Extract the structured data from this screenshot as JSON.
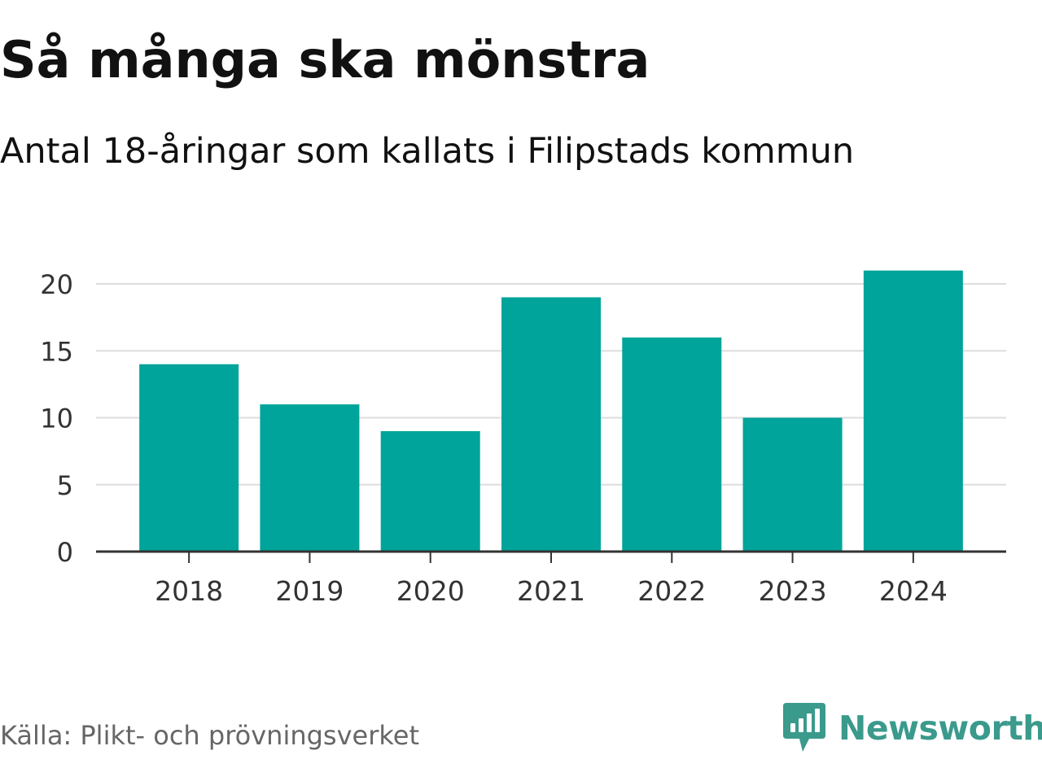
{
  "header": {
    "title": "Så många ska mönstra",
    "subtitle": "Antal 18-åringar som kallats i Filipstads kommun"
  },
  "footer": {
    "source": "Källa: Plikt- och prövningsverket",
    "brand": "Newsworthy",
    "brand_icon": "newsworthy-logo-icon"
  },
  "colors": {
    "bar": "#00a49a",
    "brand": "#3a9a8c",
    "grid": "#dddddd",
    "axis": "#333333",
    "tick_text": "#333333"
  },
  "chart_data": {
    "type": "bar",
    "title": "Så många ska mönstra",
    "subtitle": "Antal 18-åringar som kallats i Filipstads kommun",
    "xlabel": "",
    "ylabel": "",
    "categories": [
      "2018",
      "2019",
      "2020",
      "2021",
      "2022",
      "2023",
      "2024"
    ],
    "values": [
      14,
      11,
      9,
      19,
      16,
      10,
      21
    ],
    "ylim": [
      0,
      20
    ],
    "yticks": [
      0,
      5,
      10,
      15,
      20
    ],
    "grid": true,
    "legend": "none"
  }
}
